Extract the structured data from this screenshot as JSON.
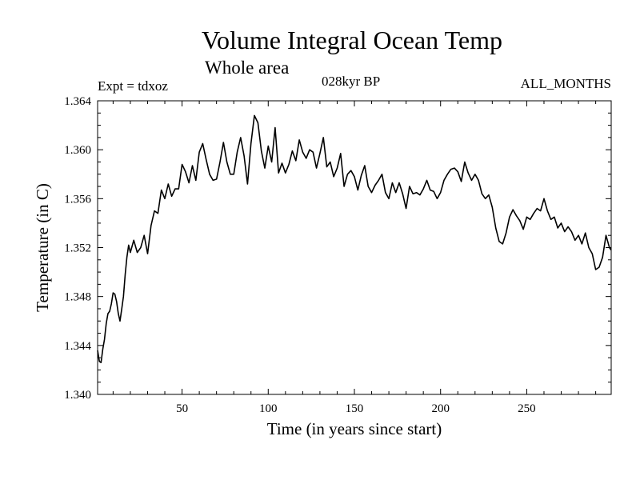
{
  "header": {
    "title": "Volume Integral Ocean Temp",
    "subtitle": "Whole area",
    "expt": "Expt = tdxoz",
    "period": "028kyr BP",
    "months": "ALL_MONTHS"
  },
  "chart_data": {
    "type": "line",
    "title": "Volume Integral Ocean Temp",
    "subtitle": "Whole area",
    "xlabel": "Time (in years since start)",
    "ylabel": "Temperature (in C)",
    "xlim": [
      1,
      299
    ],
    "ylim": [
      1.34,
      1.364
    ],
    "xticks": [
      50,
      100,
      150,
      200,
      250
    ],
    "xtick_labels": [
      "50",
      "100",
      "150",
      "200",
      "250"
    ],
    "yticks": [
      1.34,
      1.344,
      1.348,
      1.352,
      1.356,
      1.36,
      1.364
    ],
    "ytick_labels": [
      "1.340",
      "1.344",
      "1.348",
      "1.352",
      "1.356",
      "1.360",
      "1.364"
    ],
    "grid": false,
    "series": [
      {
        "x": [
          1,
          2,
          3,
          4,
          5,
          6,
          7,
          8,
          9,
          10,
          11,
          12,
          13,
          14,
          15,
          16,
          17,
          18,
          19,
          20,
          22,
          24,
          26,
          28,
          30,
          32,
          34,
          36,
          38,
          40,
          42,
          44,
          46,
          48,
          50,
          52,
          54,
          56,
          58,
          60,
          62,
          64,
          66,
          68,
          70,
          72,
          74,
          76,
          78,
          80,
          82,
          84,
          86,
          88,
          90,
          92,
          94,
          96,
          98,
          100,
          102,
          104,
          106,
          108,
          110,
          112,
          114,
          116,
          118,
          120,
          122,
          124,
          126,
          128,
          130,
          132,
          134,
          136,
          138,
          140,
          142,
          144,
          146,
          148,
          150,
          152,
          154,
          156,
          158,
          160,
          162,
          164,
          166,
          168,
          170,
          172,
          174,
          176,
          178,
          180,
          182,
          184,
          186,
          188,
          190,
          192,
          194,
          196,
          198,
          200,
          202,
          204,
          206,
          208,
          210,
          212,
          214,
          216,
          218,
          220,
          222,
          224,
          226,
          228,
          230,
          232,
          234,
          236,
          238,
          240,
          242,
          244,
          246,
          248,
          250,
          252,
          254,
          256,
          258,
          260,
          262,
          264,
          266,
          268,
          270,
          272,
          274,
          276,
          278,
          280,
          282,
          284,
          286,
          288,
          290,
          292,
          294,
          296,
          298,
          299
        ],
        "y": [
          1.3436,
          1.3427,
          1.3426,
          1.3437,
          1.3445,
          1.3458,
          1.3466,
          1.3468,
          1.3474,
          1.3483,
          1.3482,
          1.3476,
          1.3466,
          1.346,
          1.347,
          1.348,
          1.3498,
          1.3512,
          1.3522,
          1.3516,
          1.3526,
          1.3516,
          1.352,
          1.353,
          1.3515,
          1.3538,
          1.355,
          1.3548,
          1.3567,
          1.356,
          1.3572,
          1.3562,
          1.3568,
          1.3568,
          1.3588,
          1.3582,
          1.3573,
          1.3587,
          1.3575,
          1.3598,
          1.3605,
          1.3592,
          1.358,
          1.3575,
          1.3576,
          1.359,
          1.3606,
          1.359,
          1.358,
          1.358,
          1.3598,
          1.361,
          1.3595,
          1.3572,
          1.3605,
          1.3628,
          1.3622,
          1.3599,
          1.3585,
          1.3603,
          1.359,
          1.3618,
          1.3581,
          1.3589,
          1.3581,
          1.3588,
          1.3599,
          1.3591,
          1.3608,
          1.3598,
          1.3593,
          1.36,
          1.3598,
          1.3585,
          1.3597,
          1.361,
          1.3586,
          1.359,
          1.3578,
          1.3585,
          1.3597,
          1.357,
          1.358,
          1.3583,
          1.3578,
          1.3567,
          1.3579,
          1.3587,
          1.357,
          1.3565,
          1.3571,
          1.3575,
          1.358,
          1.3565,
          1.356,
          1.3573,
          1.3565,
          1.3573,
          1.3564,
          1.3552,
          1.357,
          1.3564,
          1.3565,
          1.3563,
          1.3568,
          1.3575,
          1.3567,
          1.3566,
          1.356,
          1.3565,
          1.3575,
          1.358,
          1.3584,
          1.3585,
          1.3582,
          1.3574,
          1.359,
          1.3581,
          1.3575,
          1.358,
          1.3575,
          1.3564,
          1.356,
          1.3563,
          1.3553,
          1.3536,
          1.3525,
          1.3523,
          1.3532,
          1.3545,
          1.3551,
          1.3546,
          1.3542,
          1.3535,
          1.3545,
          1.3543,
          1.3548,
          1.3552,
          1.355,
          1.356,
          1.355,
          1.3543,
          1.3545,
          1.3536,
          1.354,
          1.3533,
          1.3537,
          1.3533,
          1.3526,
          1.353,
          1.3523,
          1.3532,
          1.352,
          1.3515,
          1.3502,
          1.3504,
          1.3512,
          1.353,
          1.352,
          1.3518
        ]
      }
    ]
  }
}
